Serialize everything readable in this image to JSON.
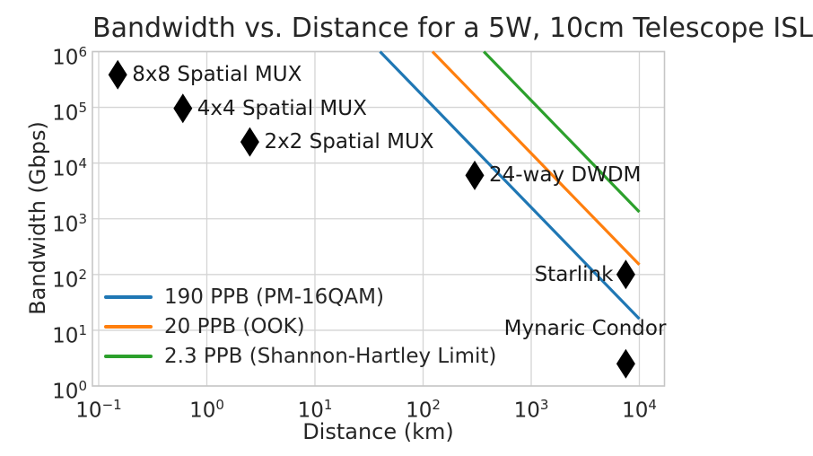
{
  "chart_data": {
    "type": "line",
    "title": "Bandwidth vs. Distance for a 5W, 10cm Telescope ISL",
    "xlabel": "Distance (km)",
    "ylabel": "Bandwidth (Gbps)",
    "x_scale": "log",
    "y_scale": "log",
    "xlim": [
      0.0875,
      17080
    ],
    "ylim": [
      1,
      1000000
    ],
    "grid": true,
    "legend_position": "lower left",
    "x_ticks": [
      {
        "value": 0.1,
        "base": "10",
        "exp": "−1"
      },
      {
        "value": 1,
        "base": "10",
        "exp": "0"
      },
      {
        "value": 10,
        "base": "10",
        "exp": "1"
      },
      {
        "value": 100,
        "base": "10",
        "exp": "2"
      },
      {
        "value": 1000,
        "base": "10",
        "exp": "3"
      },
      {
        "value": 10000,
        "base": "10",
        "exp": "4"
      }
    ],
    "y_ticks": [
      {
        "value": 1,
        "base": "10",
        "exp": "0"
      },
      {
        "value": 10,
        "base": "10",
        "exp": "1"
      },
      {
        "value": 100,
        "base": "10",
        "exp": "2"
      },
      {
        "value": 1000,
        "base": "10",
        "exp": "3"
      },
      {
        "value": 10000,
        "base": "10",
        "exp": "4"
      },
      {
        "value": 100000,
        "base": "10",
        "exp": "5"
      },
      {
        "value": 1000000,
        "base": "10",
        "exp": "6"
      }
    ],
    "series": [
      {
        "name": "190 PPB (PM-16QAM)",
        "color": "#1f77b4",
        "slope_loglog": -2,
        "points": [
          [
            40,
            1000000
          ],
          [
            10000,
            16
          ]
        ]
      },
      {
        "name": "20 PPB (OOK)",
        "color": "#ff7f0e",
        "slope_loglog": -2,
        "points": [
          [
            122,
            1000000
          ],
          [
            10000,
            150
          ]
        ]
      },
      {
        "name": "2.3 PPB (Shannon-Hartley Limit)",
        "color": "#2ca02c",
        "slope_loglog": -2,
        "points": [
          [
            365,
            1000000
          ],
          [
            10000,
            1330
          ]
        ]
      }
    ],
    "points": [
      {
        "label": "8x8 Spatial MUX",
        "distance_km": 0.15,
        "bandwidth_gbps": 384000,
        "label_side": "right"
      },
      {
        "label": "4x4 Spatial MUX",
        "distance_km": 0.6,
        "bandwidth_gbps": 96000,
        "label_side": "right"
      },
      {
        "label": "2x2 Spatial MUX",
        "distance_km": 2.5,
        "bandwidth_gbps": 24000,
        "label_side": "right"
      },
      {
        "label": "24-way DWDM",
        "distance_km": 300,
        "bandwidth_gbps": 6000,
        "label_side": "right"
      },
      {
        "label": "Starlink",
        "distance_km": 7500,
        "bandwidth_gbps": 100,
        "label_side": "left"
      },
      {
        "label": "Mynaric Condor",
        "distance_km": 7500,
        "bandwidth_gbps": 2.5,
        "label_side": "above-left"
      }
    ]
  },
  "legend": {
    "items": [
      {
        "label": "190 PPB (PM-16QAM)",
        "color": "#1f77b4"
      },
      {
        "label": "20 PPB (OOK)",
        "color": "#ff7f0e"
      },
      {
        "label": "2.3 PPB (Shannon-Hartley Limit)",
        "color": "#2ca02c"
      }
    ]
  },
  "colors": {
    "marker": "#000000",
    "grid": "#d4d4d4",
    "spine": "#c6c6c6",
    "text": "#262626",
    "background": "#ffffff"
  }
}
